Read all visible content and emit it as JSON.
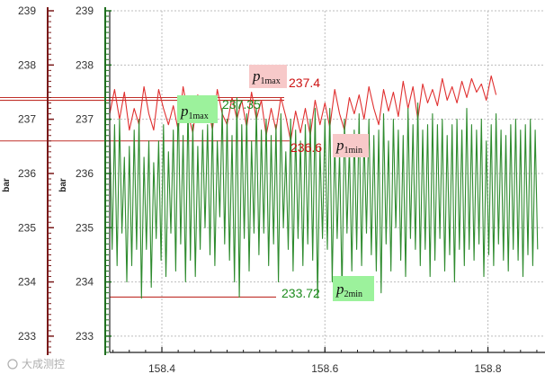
{
  "chart_data": {
    "type": "line",
    "xlabel": "",
    "ylabel": "bar",
    "xlim": [
      158.336,
      158.87
    ],
    "ylim": [
      232.7,
      239.0
    ],
    "x_ticks": [
      "158.4",
      "158.6",
      "158.8"
    ],
    "y_ticks": [
      "233",
      "234",
      "235",
      "236",
      "237",
      "238",
      "239"
    ],
    "grid": true,
    "series": [
      {
        "color": "#e03030",
        "x_start": 158.336,
        "x_step": 0.006,
        "values": [
          237.1,
          237.55,
          237.0,
          237.5,
          236.8,
          237.2,
          236.9,
          237.6,
          237.1,
          236.8,
          237.55,
          237.2,
          236.9,
          237.25,
          236.8,
          237.6,
          237.1,
          236.75,
          237.45,
          237.0,
          237.3,
          236.8,
          237.55,
          237.1,
          236.9,
          237.4,
          237.0,
          237.35,
          236.85,
          237.5,
          237.0,
          237.35,
          236.7,
          237.2,
          236.8,
          237.4,
          237.05,
          236.6,
          237.15,
          236.75,
          237.2,
          236.7,
          237.35,
          236.9,
          237.3,
          236.85,
          237.55,
          237.1,
          236.8,
          237.4,
          237.1,
          237.45,
          237.0,
          237.6,
          237.2,
          236.9,
          237.55,
          237.15,
          237.5,
          237.05,
          237.7,
          237.2,
          237.6,
          237.0,
          237.65,
          237.3,
          237.55,
          237.25,
          237.75,
          237.35,
          237.6,
          237.3,
          237.7,
          237.4,
          237.75,
          237.5,
          237.65,
          237.35,
          237.8,
          237.45
        ]
      },
      {
        "color": "#2e8b2e",
        "x_start": 158.336,
        "x_step": 0.003,
        "values": [
          236.8,
          234.6,
          236.9,
          234.3,
          237.0,
          234.9,
          236.3,
          234.0,
          236.5,
          234.3,
          236.8,
          234.6,
          237.0,
          233.7,
          236.3,
          234.6,
          236.6,
          233.9,
          236.2,
          234.8,
          236.6,
          234.4,
          236.9,
          234.1,
          236.4,
          234.9,
          236.8,
          234.2,
          237.4,
          234.7,
          236.7,
          234.0,
          237.3,
          234.4,
          236.9,
          234.1,
          236.5,
          234.6,
          236.8,
          235.0,
          236.9,
          234.5,
          237.0,
          234.3,
          236.6,
          235.2,
          237.2,
          234.7,
          237.0,
          234.4,
          236.7,
          234.0,
          237.4,
          233.72,
          236.9,
          234.8,
          237.1,
          234.2,
          236.6,
          234.9,
          237.2,
          234.5,
          236.8,
          234.9,
          237.0,
          234.3,
          236.7,
          234.7,
          236.9,
          234.0,
          237.1,
          235.0,
          236.4,
          234.6,
          237.0,
          234.2,
          236.8,
          234.8,
          236.6,
          234.3,
          236.9,
          234.7,
          237.0,
          234.4,
          237.2,
          233.7,
          236.5,
          234.8,
          237.0,
          234.6,
          237.2,
          234.0,
          236.6,
          234.8,
          236.4,
          233.8,
          237.0,
          234.9,
          236.5,
          234.2,
          236.8,
          234.6,
          237.1,
          234.3,
          236.7,
          234.9,
          237.0,
          234.5,
          236.7,
          234.2,
          236.8,
          233.8,
          237.1,
          234.7,
          236.6,
          234.2,
          237.0,
          235.0,
          236.8,
          234.4,
          236.7,
          234.1,
          237.2,
          234.8,
          236.9,
          234.6,
          237.3,
          234.3,
          236.8,
          234.6,
          236.9,
          234.1,
          237.1,
          234.4,
          236.9,
          234.8,
          237.0,
          234.2,
          236.7,
          234.5,
          236.9,
          234.0,
          237.0,
          234.6,
          236.8,
          234.3,
          237.2,
          234.6,
          236.9,
          234.4,
          236.8,
          234.7,
          237.0,
          234.1,
          236.6,
          234.5,
          236.9,
          234.3,
          237.1,
          234.7,
          236.8,
          234.4,
          236.7,
          234.2,
          236.9,
          234.6,
          237.0,
          234.4,
          236.8,
          234.1,
          236.9,
          234.5,
          237.0,
          234.3,
          236.8,
          234.6
        ]
      }
    ],
    "reference_lines": [
      {
        "color": "#c0302a",
        "y": 237.4
      },
      {
        "color": "#c0302a",
        "y": 237.35
      },
      {
        "color": "#c0302a",
        "y": 236.6
      },
      {
        "color": "#c0302a",
        "y": 233.72
      }
    ],
    "annotations": [
      {
        "label": "p",
        "sub": "1max",
        "value": "237.4",
        "color": "#cc1111",
        "bg": "#f7c9c9"
      },
      {
        "label": "p",
        "sub": "1max",
        "value": "237.35",
        "color": "#1e8c1e",
        "bg": "#9cf29c"
      },
      {
        "label": "p",
        "sub": "1min",
        "value": "236.6",
        "color": "#cc1111",
        "bg": "#f7c9c9"
      },
      {
        "label": "p",
        "sub": "2min",
        "value": "233.72",
        "color": "#1e8c1e",
        "bg": "#9cf29c"
      }
    ]
  },
  "axes": {
    "left_axis_color": "#7a1a1a",
    "inner_axis_color": "#1f6f1f"
  },
  "watermark": "大成测控"
}
